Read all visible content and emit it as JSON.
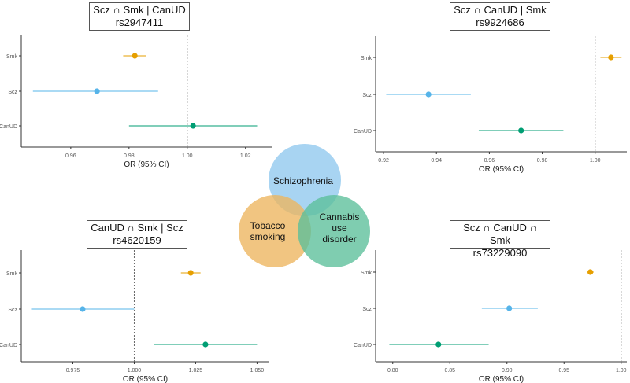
{
  "chart_data": [
    {
      "type": "forest",
      "title": "Scz ∩ Smk | CanUD",
      "subtitle": "rs2947411",
      "xlabel": "OR (95% CI)",
      "categories": [
        "Smk",
        "Scz",
        "CanUD"
      ],
      "or": [
        0.982,
        0.969,
        1.002
      ],
      "ci_low": [
        0.978,
        0.947,
        0.98
      ],
      "ci_high": [
        0.986,
        0.99,
        1.024
      ],
      "colors": [
        "#e69f00",
        "#56b4e9",
        "#009e73"
      ],
      "xlim": [
        0.943,
        1.029
      ],
      "xticks": [
        "0.96",
        "0.98",
        "1.00",
        "1.02"
      ],
      "reference_line": 1.0
    },
    {
      "type": "forest",
      "title": "Scz ∩ CanUD | Smk",
      "subtitle": "rs9924686",
      "xlabel": "OR (95% CI)",
      "categories": [
        "Smk",
        "Scz",
        "CanUD"
      ],
      "or": [
        1.006,
        0.937,
        0.972
      ],
      "ci_low": [
        1.002,
        0.921,
        0.956
      ],
      "ci_high": [
        1.01,
        0.953,
        0.988
      ],
      "colors": [
        "#e69f00",
        "#56b4e9",
        "#009e73"
      ],
      "xlim": [
        0.917,
        1.012
      ],
      "xticks": [
        "0.92",
        "0.94",
        "0.96",
        "0.98",
        "1.00"
      ],
      "reference_line": 1.0
    },
    {
      "type": "forest",
      "title": "CanUD ∩ Smk | Scz",
      "subtitle": "rs4620159",
      "xlabel": "OR (95% CI)",
      "categories": [
        "Smk",
        "Scz",
        "CanUD"
      ],
      "or": [
        1.023,
        0.979,
        1.029
      ],
      "ci_low": [
        1.019,
        0.958,
        1.008
      ],
      "ci_high": [
        1.027,
        1.0,
        1.05
      ],
      "colors": [
        "#e69f00",
        "#56b4e9",
        "#009e73"
      ],
      "xlim": [
        0.954,
        1.055
      ],
      "xticks": [
        "0.975",
        "1.000",
        "1.025",
        "1.050"
      ],
      "reference_line": 1.0
    },
    {
      "type": "forest",
      "title": "Scz ∩ CanUD ∩ Smk",
      "subtitle": "rs73229090",
      "xlabel": "OR (95% CI)",
      "categories": [
        "Smk",
        "Scz",
        "CanUD"
      ],
      "or": [
        0.973,
        0.902,
        0.84
      ],
      "ci_low": [
        0.97,
        0.878,
        0.797
      ],
      "ci_high": [
        0.976,
        0.927,
        0.884
      ],
      "colors": [
        "#e69f00",
        "#56b4e9",
        "#009e73"
      ],
      "xlim": [
        0.785,
        1.005
      ],
      "xticks": [
        "0.80",
        "0.85",
        "0.90",
        "0.95",
        "1.00"
      ],
      "reference_line": 1.0
    }
  ],
  "venn": {
    "labels": [
      {
        "lines": [
          "Schizophrenia"
        ],
        "color": "#8fc8ee"
      },
      {
        "lines": [
          "Tobacco",
          "smoking"
        ],
        "color": "#edb55e"
      },
      {
        "lines": [
          "Cannabis",
          "use",
          "disorder"
        ],
        "color": "#5bbf9a"
      }
    ]
  }
}
